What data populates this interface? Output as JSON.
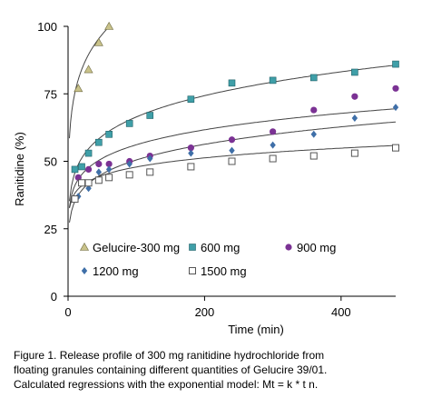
{
  "chart_data": {
    "type": "scatter",
    "xlabel": "Time (min)",
    "ylabel": "Ranitidine (%)",
    "xlim": [
      0,
      480
    ],
    "ylim": [
      0,
      100
    ],
    "x_ticks": [
      0,
      200,
      400
    ],
    "y_ticks": [
      0,
      25,
      50,
      75,
      100
    ],
    "x_tick_labels": [
      "0",
      "200",
      "400"
    ],
    "y_tick_labels": [
      "0",
      "25",
      "50",
      "75",
      "100"
    ],
    "grid": false,
    "legend_position": "inside lower-left",
    "series": [
      {
        "name": "Gelucire-300 mg",
        "marker": "triangle",
        "color": "#c9c28a",
        "x": [
          15,
          30,
          45,
          60
        ],
        "y": [
          77,
          84,
          94,
          100
        ],
        "fit": {
          "k": 52.5,
          "n": 0.157,
          "x_range": [
            2,
            62
          ]
        }
      },
      {
        "name": "600 mg",
        "marker": "square",
        "color": "#3f9fa8",
        "x": [
          10,
          20,
          30,
          45,
          60,
          90,
          120,
          180,
          240,
          300,
          360,
          420,
          480
        ],
        "y": [
          47,
          48,
          53,
          57,
          60,
          64,
          67,
          73,
          79,
          80,
          81,
          83,
          86
        ],
        "fit": {
          "k": 31.5,
          "n": 0.162,
          "x_range": [
            2,
            480
          ]
        }
      },
      {
        "name": "900 mg",
        "marker": "circle",
        "color": "#7b3294",
        "x": [
          15,
          30,
          45,
          60,
          90,
          120,
          180,
          240,
          300,
          360,
          420,
          480
        ],
        "y": [
          44,
          47,
          49,
          49,
          50,
          52,
          55,
          58,
          61,
          69,
          74,
          77
        ],
        "fit": {
          "k": 30.0,
          "n": 0.136,
          "x_range": [
            2,
            480
          ]
        }
      },
      {
        "name": "1200 mg",
        "marker": "diamond",
        "color": "#3f6fa8",
        "x": [
          15,
          30,
          45,
          60,
          90,
          120,
          180,
          240,
          300,
          360,
          420,
          480
        ],
        "y": [
          37,
          40,
          46,
          47,
          49,
          51,
          53,
          54,
          56,
          60,
          66,
          70
        ],
        "fit": {
          "k": 24.5,
          "n": 0.157,
          "x_range": [
            2,
            480
          ]
        }
      },
      {
        "name": "1500 mg",
        "marker": "open-square",
        "color": "#555555",
        "x": [
          10,
          20,
          30,
          45,
          60,
          90,
          120,
          180,
          240,
          300,
          360,
          420,
          480
        ],
        "y": [
          36,
          42,
          42,
          43,
          44,
          45,
          46,
          48,
          50,
          51,
          52,
          53,
          55
        ],
        "fit": {
          "k": 30.5,
          "n": 0.098,
          "x_range": [
            2,
            480
          ]
        }
      }
    ],
    "caption": [
      "Figure 1. Release profile of 300 mg ranitidine hydrochloride from",
      "floating granules containing different quantities of Gelucire 39/01.",
      "Calculated regressions with the exponential model: Mt = k * t n."
    ]
  }
}
